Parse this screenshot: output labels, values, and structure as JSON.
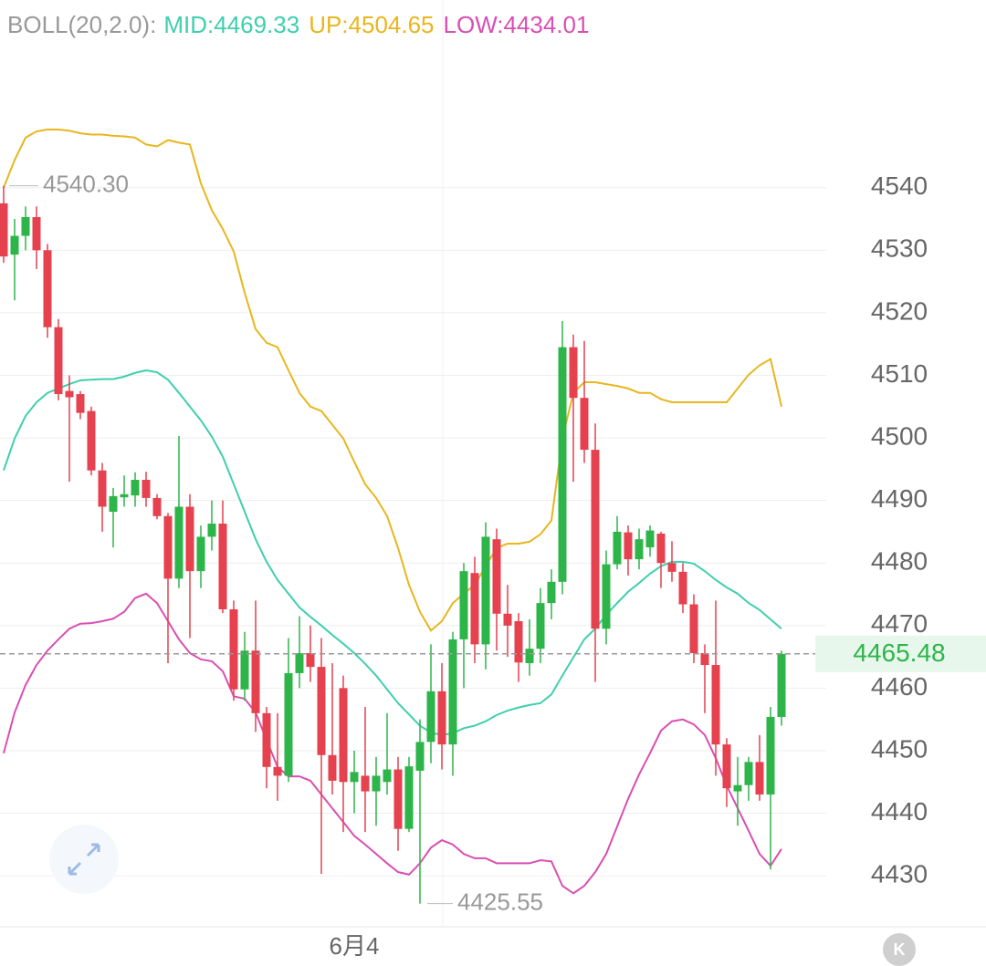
{
  "chart_data": {
    "type": "candlestick",
    "indicator_label": "BOLL(20,2.0):",
    "categories": [
      null,
      null,
      null,
      null,
      null,
      null,
      null,
      null,
      null,
      null,
      null,
      null,
      null,
      null,
      null,
      null,
      null,
      null,
      null,
      null,
      null,
      null,
      null,
      null,
      null,
      null,
      null,
      null,
      null,
      null,
      null,
      null,
      "6月4",
      null,
      null,
      null,
      null,
      null,
      null,
      null,
      null,
      null,
      null,
      null,
      null,
      null,
      null,
      null,
      null,
      null,
      null,
      null,
      null,
      null,
      null,
      null,
      null,
      null,
      null,
      null,
      null,
      null,
      null,
      null,
      null,
      null,
      null,
      null,
      null,
      null,
      null,
      null
    ],
    "open": [
      4537.5,
      4529.3,
      4532.3,
      4535.3,
      4530,
      4517.7,
      4507.5,
      4507,
      4504.3,
      4494.8,
      4488.2,
      4490.5,
      4490.8,
      4493.3,
      4490.4,
      4487.5,
      4477.5,
      4489,
      4478.7,
      4484.2,
      4486.3,
      4472.6,
      4459.8,
      4466,
      4456,
      4447.4,
      4446,
      4462.4,
      4465.6,
      4463.4,
      4449.3,
      4460,
      4445,
      4446,
      4443.5,
      4445,
      4447,
      4437.5,
      4446.8,
      4451.4,
      4459.5,
      4451,
      4467.8,
      4478.4,
      4467,
      4483.8,
      4471.9,
      4470.7,
      4464,
      4466.3,
      4473.6,
      4477,
      4514.5,
      4506.4,
      4498.1,
      4469.5,
      4479.8,
      4484.9,
      4480.6,
      4482.5,
      4484.7,
      4480,
      4478.6,
      4473.4,
      4465.6,
      4463.7,
      4451,
      4443.5,
      4444.5,
      4448.2,
      4443,
      4455.4
    ],
    "high": [
      4540.3,
      4535,
      4537,
      4537,
      4531,
      4519,
      4510,
      4507.5,
      4505,
      4496,
      4492,
      4494,
      4494.5,
      4494.6,
      4491,
      4488,
      4500.3,
      4491,
      4486,
      4490,
      4490,
      4474,
      4469,
      4474,
      4457,
      4456,
      4468,
      4471.5,
      4470,
      4468,
      4464,
      4462,
      4450,
      4457,
      4449,
      4456,
      4449,
      4449,
      4455,
      4467,
      4464,
      4469,
      4480,
      4481,
      4486.5,
      4485.5,
      4476.5,
      4472,
      4471,
      4476,
      4479,
      4518.7,
      4516.5,
      4515.5,
      4502.3,
      4482,
      4487.5,
      4486,
      4485.5,
      4486,
      4485,
      4483.5,
      4480,
      4475,
      4467,
      4474,
      4452,
      4449,
      4449,
      4452.5,
      4457,
      4466
    ],
    "low": [
      4528,
      4522,
      4530,
      4527,
      4516,
      4506,
      4493,
      4503,
      4494,
      4485,
      4482.5,
      4489,
      4489,
      4489,
      4487,
      4464,
      4476,
      4468,
      4476,
      4482,
      4472,
      4458,
      4458,
      4453,
      4444,
      4442,
      4445,
      4460,
      4461,
      4430.3,
      4443,
      4437,
      4440,
      4437,
      4438,
      4443,
      4434,
      4437,
      4425.55,
      4448,
      4447,
      4446,
      4460,
      4464,
      4463,
      4466,
      4465,
      4461,
      4462,
      4464,
      4471,
      4475,
      4493,
      4496,
      4461,
      4467,
      4479,
      4478,
      4479,
      4481,
      4476,
      4477,
      4472,
      4464,
      4456,
      4446,
      4441,
      4438,
      4442,
      4442,
      4431,
      4454
    ],
    "close": [
      4529,
      4532.3,
      4535.3,
      4530,
      4517.7,
      4507,
      4506.5,
      4504,
      4494.8,
      4489,
      4490.7,
      4491,
      4493.3,
      4490.4,
      4487.5,
      4477.5,
      4489,
      4478.7,
      4484.2,
      4486.3,
      4472.6,
      4459.8,
      4466,
      4456,
      4447.4,
      4446,
      4462.4,
      4465.6,
      4463.4,
      4449.3,
      4445.2,
      4445,
      4446.6,
      4443.5,
      4446,
      4447,
      4437.5,
      4447.5,
      4451.4,
      4459.5,
      4451,
      4467.8,
      4478.7,
      4467,
      4484.2,
      4471.9,
      4470,
      4464.1,
      4466.3,
      4473.6,
      4477,
      4514.5,
      4506.4,
      4498.1,
      4469.5,
      4479.8,
      4485,
      4480.6,
      4483.8,
      4485.2,
      4480,
      4478.6,
      4473.4,
      4465.6,
      4463.7,
      4451,
      4444,
      4444.5,
      4448.2,
      4443,
      4455.4,
      4465.48
    ],
    "up_color": "#e5414f",
    "down_color": "#2db54a",
    "series": [
      {
        "name": "MID:4469.33",
        "color": "#3fcfae",
        "values": [
          4494.8,
          4499.9,
          4503.5,
          4505.7,
          4507.2,
          4507.9,
          4508.6,
          4509.2,
          4509.3,
          4509.4,
          4509.4,
          4509.8,
          4510.4,
          4510.8,
          4510.5,
          4509.3,
          4507.2,
          4505,
          4502.8,
          4500.2,
          4497,
          4492.6,
          4488.2,
          4483.8,
          4480.2,
          4477.3,
          4475.1,
          4472.9,
          4471.4,
          4470,
          4468.5,
          4467.1,
          4465.6,
          4463.9,
          4462,
          4459.8,
          4457.6,
          4455.8,
          4454,
          4452.9,
          4452.5,
          4452.8,
          4453.6,
          4454,
          4454.7,
          4455.7,
          4456.4,
          4456.9,
          4457.3,
          4457.6,
          4459,
          4462,
          4464.9,
          4467.8,
          4469.5,
          4471.7,
          4473.6,
          4475.4,
          4476.8,
          4478.3,
          4479.5,
          4480.2,
          4480.2,
          4479.9,
          4478.7,
          4477.3,
          4476.1,
          4475.1,
          4473.6,
          4472.5,
          4471,
          4469.5
        ]
      },
      {
        "name": "UP:4504.65",
        "color": "#e8b61e",
        "values": [
          4540,
          4544.4,
          4548,
          4549,
          4549.3,
          4549.3,
          4549.1,
          4548.7,
          4548.5,
          4548.5,
          4548.3,
          4548.2,
          4548,
          4546.9,
          4546.6,
          4547.6,
          4547.2,
          4546.9,
          4540.7,
          4536.4,
          4533.4,
          4529.8,
          4523.2,
          4517.4,
          4515.2,
          4514.5,
          4510.8,
          4507.2,
          4505,
          4504.3,
          4502.1,
          4499.9,
          4496.2,
          4492.6,
          4490.4,
          4487.5,
          4482.4,
          4476.5,
          4472.2,
          4469.2,
          4470.7,
          4473.6,
          4475.1,
          4476.5,
          4479.5,
          4482.4,
          4483.1,
          4483.1,
          4483.4,
          4484.6,
          4486.8,
          4499.9,
          4507.2,
          4508.9,
          4508.9,
          4508.6,
          4508.3,
          4507.9,
          4507.2,
          4507.2,
          4506.2,
          4505.7,
          4505.7,
          4505.7,
          4505.7,
          4505.7,
          4505.7,
          4507.9,
          4510.1,
          4511.6,
          4512.6,
          4505
        ]
      },
      {
        "name": "LOW:4434.01",
        "color": "#d94fb2",
        "values": [
          4449.6,
          4456.1,
          4460.5,
          4463.7,
          4466,
          4467.8,
          4469.5,
          4470.3,
          4470.4,
          4470.7,
          4471.1,
          4472.2,
          4474.4,
          4475.1,
          4473.6,
          4470.7,
          4467.8,
          4465.6,
          4464.6,
          4464.3,
          4462.7,
          4458.7,
          4458.3,
          4456.1,
          4451.7,
          4447.4,
          4445.9,
          4445.9,
          4445.2,
          4443,
          4440.8,
          4438.6,
          4436.4,
          4435,
          4433.5,
          4432,
          4430.6,
          4430.2,
          4432,
          4434.5,
          4435.7,
          4435,
          4433.5,
          4432.8,
          4432.8,
          4432,
          4432,
          4432,
          4432,
          4432.5,
          4432.3,
          4428.4,
          4427.2,
          4428.4,
          4430.6,
          4433.5,
          4437.9,
          4442.3,
          4446.2,
          4449.6,
          4453.2,
          4454.7,
          4455,
          4454.2,
          4452.5,
          4448.8,
          4444.4,
          4440.8,
          4437.2,
          4433.5,
          4431.6,
          4434.3
        ]
      }
    ],
    "max_label": "4540.30",
    "min_label": "4425.55",
    "last_label": "4465.48",
    "ylim": [
      4422,
      4570
    ],
    "yticks": [
      4430,
      4440,
      4450,
      4460,
      4470,
      4480,
      4490,
      4500,
      4510,
      4520,
      4530,
      4540
    ],
    "grid": true
  }
}
